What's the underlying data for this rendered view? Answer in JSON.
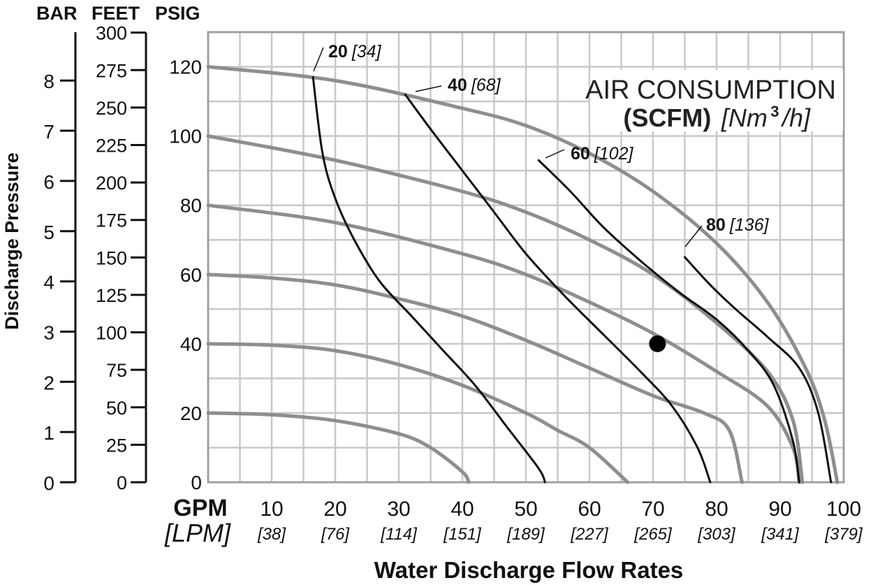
{
  "chart_data": {
    "type": "line",
    "xlabel": "Water Discharge Flow Rates",
    "x_unit_primary": "GPM",
    "x_unit_secondary": "[LPM]",
    "x_ticks": [
      {
        "gpm": "10",
        "lpm": "[38]"
      },
      {
        "gpm": "20",
        "lpm": "[76]"
      },
      {
        "gpm": "30",
        "lpm": "[114]"
      },
      {
        "gpm": "40",
        "lpm": "[151]"
      },
      {
        "gpm": "50",
        "lpm": "[189]"
      },
      {
        "gpm": "60",
        "lpm": "[227]"
      },
      {
        "gpm": "70",
        "lpm": "[265]"
      },
      {
        "gpm": "80",
        "lpm": "[303]"
      },
      {
        "gpm": "90",
        "lpm": "[341]"
      },
      {
        "gpm": "100",
        "lpm": "[379]"
      }
    ],
    "xlim": [
      0,
      100
    ],
    "ylabel": "Discharge Pressure",
    "y_axes": {
      "bar": {
        "label": "BAR",
        "ticks": [
          "0",
          "1",
          "2",
          "3",
          "4",
          "5",
          "6",
          "7",
          "8"
        ],
        "values": [
          0,
          1,
          2,
          3,
          4,
          5,
          6,
          7,
          8
        ]
      },
      "feet": {
        "label": "FEET",
        "ticks": [
          "0",
          "25",
          "50",
          "75",
          "100",
          "125",
          "150",
          "175",
          "200",
          "225",
          "250",
          "275",
          "300"
        ],
        "values": [
          0,
          25,
          50,
          75,
          100,
          125,
          150,
          175,
          200,
          225,
          250,
          275,
          300
        ]
      },
      "psig": {
        "label": "PSIG",
        "ticks": [
          "0",
          "20",
          "40",
          "60",
          "80",
          "100",
          "120"
        ],
        "values": [
          0,
          20,
          40,
          60,
          80,
          100,
          120
        ]
      }
    },
    "ylim_psig": [
      0,
      130
    ],
    "x_origin_label": "0",
    "legend_title": "AIR CONSUMPTION",
    "legend_unit_bold": "(SCFM)",
    "legend_unit_italic_prefix": "[Nm",
    "legend_unit_sup": "3",
    "legend_unit_italic_suffix": "/h]",
    "pressure_curves": [
      {
        "inlet_psig": 20,
        "points": [
          [
            0,
            20
          ],
          [
            10,
            19.5
          ],
          [
            20,
            17.8
          ],
          [
            30,
            14
          ],
          [
            35,
            10
          ],
          [
            40,
            3
          ],
          [
            41,
            0
          ]
        ]
      },
      {
        "inlet_psig": 40,
        "points": [
          [
            0,
            40
          ],
          [
            10,
            39.6
          ],
          [
            20,
            38
          ],
          [
            30,
            34
          ],
          [
            40,
            28
          ],
          [
            50,
            20
          ],
          [
            55,
            15
          ],
          [
            60,
            10
          ],
          [
            66,
            0
          ]
        ]
      },
      {
        "inlet_psig": 60,
        "points": [
          [
            0,
            60
          ],
          [
            10,
            59
          ],
          [
            20,
            57
          ],
          [
            30,
            53
          ],
          [
            40,
            48
          ],
          [
            50,
            41
          ],
          [
            60,
            33
          ],
          [
            70,
            25
          ],
          [
            78,
            20
          ],
          [
            82,
            15
          ],
          [
            84,
            0
          ]
        ]
      },
      {
        "inlet_psig": 80,
        "points": [
          [
            0,
            80
          ],
          [
            20,
            75
          ],
          [
            40,
            66
          ],
          [
            50,
            60
          ],
          [
            60,
            52
          ],
          [
            70,
            43
          ],
          [
            80,
            32
          ],
          [
            88,
            22
          ],
          [
            92,
            10
          ],
          [
            93,
            0
          ]
        ]
      },
      {
        "inlet_psig": 100,
        "points": [
          [
            0,
            100
          ],
          [
            20,
            93
          ],
          [
            40,
            84
          ],
          [
            50,
            78
          ],
          [
            60,
            70
          ],
          [
            70,
            60
          ],
          [
            80,
            46
          ],
          [
            88,
            32
          ],
          [
            92,
            18
          ],
          [
            93.5,
            0
          ]
        ]
      },
      {
        "inlet_psig": 120,
        "points": [
          [
            0,
            120
          ],
          [
            20,
            116
          ],
          [
            40,
            108
          ],
          [
            50,
            103
          ],
          [
            60,
            95
          ],
          [
            70,
            84
          ],
          [
            80,
            69
          ],
          [
            88,
            52
          ],
          [
            94,
            33
          ],
          [
            97,
            18
          ],
          [
            99,
            0
          ]
        ]
      }
    ],
    "air_consumption_curves": [
      {
        "label": "20",
        "label_nm3": "[34]",
        "points": [
          [
            16.5,
            117
          ],
          [
            18,
            95
          ],
          [
            20,
            82
          ],
          [
            23,
            70
          ],
          [
            27,
            58
          ],
          [
            32,
            48
          ],
          [
            37,
            38
          ],
          [
            42,
            28
          ],
          [
            47,
            16
          ],
          [
            52,
            4
          ],
          [
            53,
            0
          ]
        ]
      },
      {
        "label": "40",
        "label_nm3": "[68]",
        "points": [
          [
            31,
            112
          ],
          [
            35,
            102
          ],
          [
            40,
            90
          ],
          [
            45,
            78
          ],
          [
            50,
            66
          ],
          [
            56,
            54
          ],
          [
            62,
            43
          ],
          [
            68,
            32
          ],
          [
            73,
            22
          ],
          [
            77,
            10
          ],
          [
            79,
            0
          ]
        ]
      },
      {
        "label": "60",
        "label_nm3": "[102]",
        "points": [
          [
            52,
            93
          ],
          [
            57,
            84
          ],
          [
            62,
            74
          ],
          [
            68,
            64
          ],
          [
            74,
            55
          ],
          [
            80,
            47
          ],
          [
            85,
            38
          ],
          [
            89,
            28
          ],
          [
            92,
            12
          ],
          [
            93,
            0
          ]
        ]
      },
      {
        "label": "80",
        "label_nm3": "[136]",
        "points": [
          [
            75,
            65
          ],
          [
            79,
            57
          ],
          [
            83,
            50
          ],
          [
            88,
            42
          ],
          [
            93,
            33
          ],
          [
            96,
            20
          ],
          [
            98,
            0
          ]
        ]
      }
    ],
    "operating_point": {
      "gpm": 70.7,
      "psig": 40
    }
  },
  "colors": {
    "grid": "#c8c8c8",
    "frame": "#a0a0a0",
    "pressure_curve": "#8e8e8e",
    "air_curve": "#111111",
    "text": "#111111"
  }
}
